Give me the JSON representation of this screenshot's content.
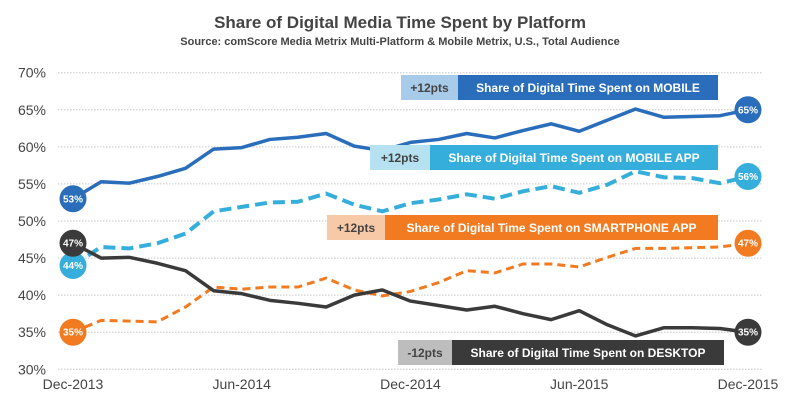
{
  "chart_data": {
    "type": "line",
    "title": "Share of Digital Media Time Spent by Platform",
    "subtitle": "Source: comScore Media Metrix Multi-Platform & Mobile Metrix, U.S., Total Audience",
    "xlabel": "",
    "ylabel": "",
    "x_tick_labels": [
      "Dec-2013",
      "Jun-2014",
      "Dec-2014",
      "Jun-2015",
      "Dec-2015"
    ],
    "y_tick_labels": [
      "70%",
      "65%",
      "60%",
      "55%",
      "50%",
      "45%",
      "40%",
      "35%",
      "30%"
    ],
    "ylim": [
      30,
      70
    ],
    "y_unit": "%",
    "grid": "horizontal dotted",
    "x": [
      "Dec-2013",
      "Jan-2014",
      "Feb-2014",
      "Mar-2014",
      "Apr-2014",
      "May-2014",
      "Jun-2014",
      "Jul-2014",
      "Aug-2014",
      "Sep-2014",
      "Oct-2014",
      "Nov-2014",
      "Dec-2014",
      "Jan-2015",
      "Feb-2015",
      "Mar-2015",
      "Apr-2015",
      "May-2015",
      "Jun-2015",
      "Jul-2015",
      "Aug-2015",
      "Sep-2015",
      "Oct-2015",
      "Nov-2015",
      "Dec-2015"
    ],
    "series": [
      {
        "key": "mobile",
        "color": "#2a6ebb",
        "style": "solid",
        "values": [
          53,
          55.3,
          55.1,
          56.0,
          57.1,
          59.7,
          59.9,
          61.0,
          61.3,
          61.8,
          60.1,
          59.5,
          60.6,
          61.0,
          61.8,
          61.2,
          62.2,
          63.1,
          62.1,
          63.6,
          65.1,
          64.0,
          64.1,
          64.2,
          65
        ],
        "start_label": "53%",
        "end_label": "65%",
        "change": "+12pts",
        "label": "Share of Digital Time Spent on MOBILE",
        "light_color": "#a8cbea"
      },
      {
        "key": "mobile_app",
        "color": "#36aedb",
        "style": "dashed",
        "values": [
          44,
          46.5,
          46.3,
          47.0,
          48.3,
          51.3,
          51.9,
          52.5,
          52.6,
          53.7,
          52.2,
          51.3,
          52.4,
          52.9,
          53.6,
          53.0,
          54.0,
          54.7,
          53.8,
          54.9,
          56.7,
          55.9,
          55.8,
          55.1,
          56
        ],
        "start_label": "44%",
        "end_label": "56%",
        "change": "+12pts",
        "label": "Share of Digital Time Spent on MOBILE APP",
        "light_color": "#b5e1f1"
      },
      {
        "key": "smartphone_app",
        "color": "#f27b21",
        "style": "dashed",
        "values": [
          35,
          36.6,
          36.5,
          36.4,
          38.4,
          41.1,
          40.8,
          41.1,
          41.1,
          42.3,
          40.7,
          39.9,
          40.5,
          41.7,
          43.3,
          43.0,
          44.2,
          44.2,
          43.8,
          45.1,
          46.3,
          46.3,
          46.4,
          46.5,
          47
        ],
        "start_label": "35%",
        "end_label": "47%",
        "change": "+12pts",
        "label": "Share of Digital Time Spent on SMARTPHONE APP",
        "light_color": "#f8c9a6"
      },
      {
        "key": "desktop",
        "color": "#3a3a3a",
        "style": "solid",
        "values": [
          47,
          45.0,
          45.1,
          44.3,
          43.3,
          40.6,
          40.2,
          39.3,
          38.9,
          38.4,
          40.0,
          40.7,
          39.2,
          38.6,
          38.0,
          38.5,
          37.5,
          36.7,
          37.9,
          36.0,
          34.5,
          35.6,
          35.6,
          35.5,
          35
        ],
        "start_label": "47%",
        "end_label": "35%",
        "change": "-12pts",
        "label": "Share of Digital Time Spent on DESKTOP",
        "light_color": "#bdbdbd"
      }
    ]
  }
}
